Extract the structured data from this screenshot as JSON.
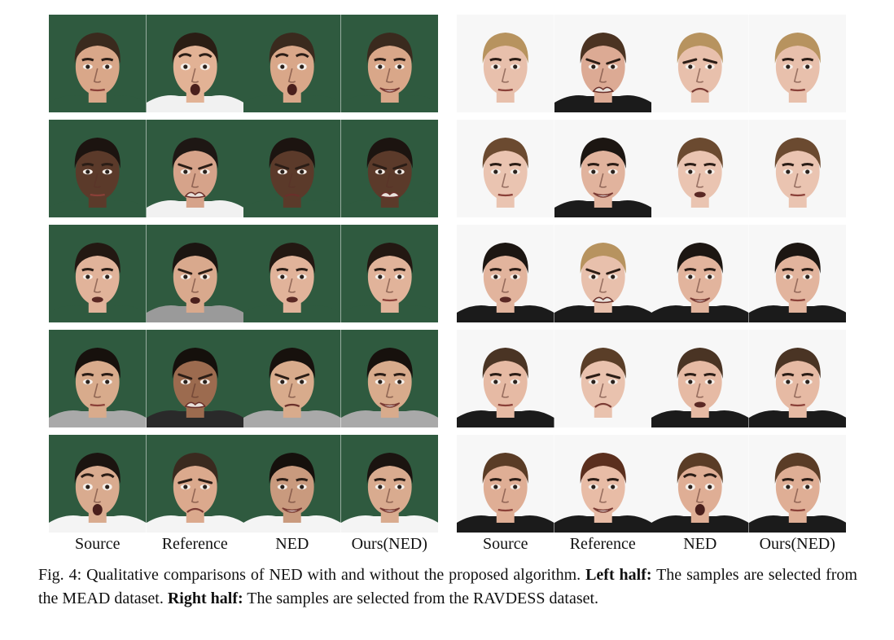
{
  "figure": {
    "column_labels": [
      "Source",
      "Reference",
      "NED",
      "Ours(NED)"
    ],
    "panels": [
      {
        "id": "mead",
        "background": "#2f5a3f",
        "rows": [
          {
            "faces": [
              {
                "skin": "#d9a789",
                "hair": "#3a2a1e",
                "shirt": "#2f5a3f",
                "expr": "neutral"
              },
              {
                "skin": "#e2b295",
                "hair": "#2a1d14",
                "shirt": "#f1f1f1",
                "expr": "surprise"
              },
              {
                "skin": "#d9a789",
                "hair": "#3a2a1e",
                "shirt": "#2f5a3f",
                "expr": "surprise"
              },
              {
                "skin": "#d9a789",
                "hair": "#3a2a1e",
                "shirt": "#2f5a3f",
                "expr": "smile"
              }
            ]
          },
          {
            "faces": [
              {
                "skin": "#5b3a2a",
                "hair": "#1c1410",
                "shirt": "#2f5a3f",
                "expr": "neutral"
              },
              {
                "skin": "#d6a38a",
                "hair": "#1e1714",
                "shirt": "#f1f1f1",
                "expr": "disgust"
              },
              {
                "skin": "#5b3a2a",
                "hair": "#1c1410",
                "shirt": "#2f5a3f",
                "expr": "frown"
              },
              {
                "skin": "#5b3a2a",
                "hair": "#1c1410",
                "shirt": "#2f5a3f",
                "expr": "disgust"
              }
            ]
          },
          {
            "faces": [
              {
                "skin": "#e1b39a",
                "hair": "#231812",
                "shirt": "#2f5a3f",
                "expr": "talk"
              },
              {
                "skin": "#d9a98d",
                "hair": "#1b1511",
                "shirt": "#9a9a9a",
                "expr": "angry"
              },
              {
                "skin": "#e1b39a",
                "hair": "#231812",
                "shirt": "#2f5a3f",
                "expr": "talk"
              },
              {
                "skin": "#e1b39a",
                "hair": "#231812",
                "shirt": "#2f5a3f",
                "expr": "neutral"
              }
            ]
          },
          {
            "faces": [
              {
                "skin": "#d8ab8c",
                "hair": "#17110d",
                "shirt": "#a9a9a9",
                "expr": "neutral"
              },
              {
                "skin": "#9c6b4f",
                "hair": "#15100c",
                "shirt": "#2a2a2a",
                "expr": "disgust"
              },
              {
                "skin": "#d8ab8c",
                "hair": "#17110d",
                "shirt": "#a9a9a9",
                "expr": "frown"
              },
              {
                "skin": "#d8ab8c",
                "hair": "#17110d",
                "shirt": "#a9a9a9",
                "expr": "smile"
              }
            ]
          },
          {
            "faces": [
              {
                "skin": "#d9ab8f",
                "hair": "#1b1410",
                "shirt": "#f4f4f4",
                "expr": "surprise"
              },
              {
                "skin": "#dba98d",
                "hair": "#3a2a1f",
                "shirt": "#f4f4f4",
                "expr": "sad"
              },
              {
                "skin": "#c99a7e",
                "hair": "#15100c",
                "shirt": "#f4f4f4",
                "expr": "smile"
              },
              {
                "skin": "#d9ab8f",
                "hair": "#1b1410",
                "shirt": "#f4f4f4",
                "expr": "smile"
              }
            ]
          }
        ]
      },
      {
        "id": "ravdess",
        "background": "#f7f7f7",
        "rows": [
          {
            "faces": [
              {
                "skin": "#e8c0ac",
                "hair": "#b7935f",
                "shirt": "#f7f7f7",
                "expr": "neutral"
              },
              {
                "skin": "#dcaa94",
                "hair": "#4b3322",
                "shirt": "#1b1b1b",
                "expr": "disgust"
              },
              {
                "skin": "#e8c0ac",
                "hair": "#b7935f",
                "shirt": "#f7f7f7",
                "expr": "sad"
              },
              {
                "skin": "#e8c0ac",
                "hair": "#b7935f",
                "shirt": "#f7f7f7",
                "expr": "neutral"
              }
            ]
          },
          {
            "faces": [
              {
                "skin": "#eac4b1",
                "hair": "#6b4a30",
                "shirt": "#f7f7f7",
                "expr": "neutral"
              },
              {
                "skin": "#e1b39d",
                "hair": "#1c1612",
                "shirt": "#1b1b1b",
                "expr": "smile"
              },
              {
                "skin": "#eac4b1",
                "hair": "#6b4a30",
                "shirt": "#f7f7f7",
                "expr": "talk"
              },
              {
                "skin": "#eac4b1",
                "hair": "#6b4a30",
                "shirt": "#f7f7f7",
                "expr": "neutral"
              }
            ]
          },
          {
            "faces": [
              {
                "skin": "#e2b49d",
                "hair": "#1c1612",
                "shirt": "#1b1b1b",
                "expr": "talk"
              },
              {
                "skin": "#e8c0ac",
                "hair": "#b7935f",
                "shirt": "#1b1b1b",
                "expr": "disgust"
              },
              {
                "skin": "#e2b49d",
                "hair": "#1c1612",
                "shirt": "#1b1b1b",
                "expr": "smile"
              },
              {
                "skin": "#e2b49d",
                "hair": "#1c1612",
                "shirt": "#1b1b1b",
                "expr": "neutral"
              }
            ]
          },
          {
            "faces": [
              {
                "skin": "#e6baa4",
                "hair": "#4a3424",
                "shirt": "#1b1b1b",
                "expr": "neutral"
              },
              {
                "skin": "#e9c2ae",
                "hair": "#5a3e28",
                "shirt": "#f7f7f7",
                "expr": "sad"
              },
              {
                "skin": "#e6baa4",
                "hair": "#4a3424",
                "shirt": "#1b1b1b",
                "expr": "talk"
              },
              {
                "skin": "#e6baa4",
                "hair": "#4a3424",
                "shirt": "#1b1b1b",
                "expr": "neutral"
              }
            ]
          },
          {
            "faces": [
              {
                "skin": "#dfae95",
                "hair": "#5a3c26",
                "shirt": "#1b1b1b",
                "expr": "neutral"
              },
              {
                "skin": "#e8bca6",
                "hair": "#5b2f1e",
                "shirt": "#1b1b1b",
                "expr": "smile"
              },
              {
                "skin": "#dfae95",
                "hair": "#5a3c26",
                "shirt": "#1b1b1b",
                "expr": "surprise"
              },
              {
                "skin": "#dfae95",
                "hair": "#5a3c26",
                "shirt": "#1b1b1b",
                "expr": "neutral"
              }
            ]
          }
        ]
      }
    ]
  },
  "caption": {
    "lead": "Fig. 4: Qualitative comparisons of NED with and without the proposed algorithm. ",
    "left_label": "Left half:",
    "left_text": " The samples are selected from the MEAD dataset. ",
    "right_label": "Right half:",
    "right_text": " The samples are selected from the RAVDESS dataset."
  }
}
